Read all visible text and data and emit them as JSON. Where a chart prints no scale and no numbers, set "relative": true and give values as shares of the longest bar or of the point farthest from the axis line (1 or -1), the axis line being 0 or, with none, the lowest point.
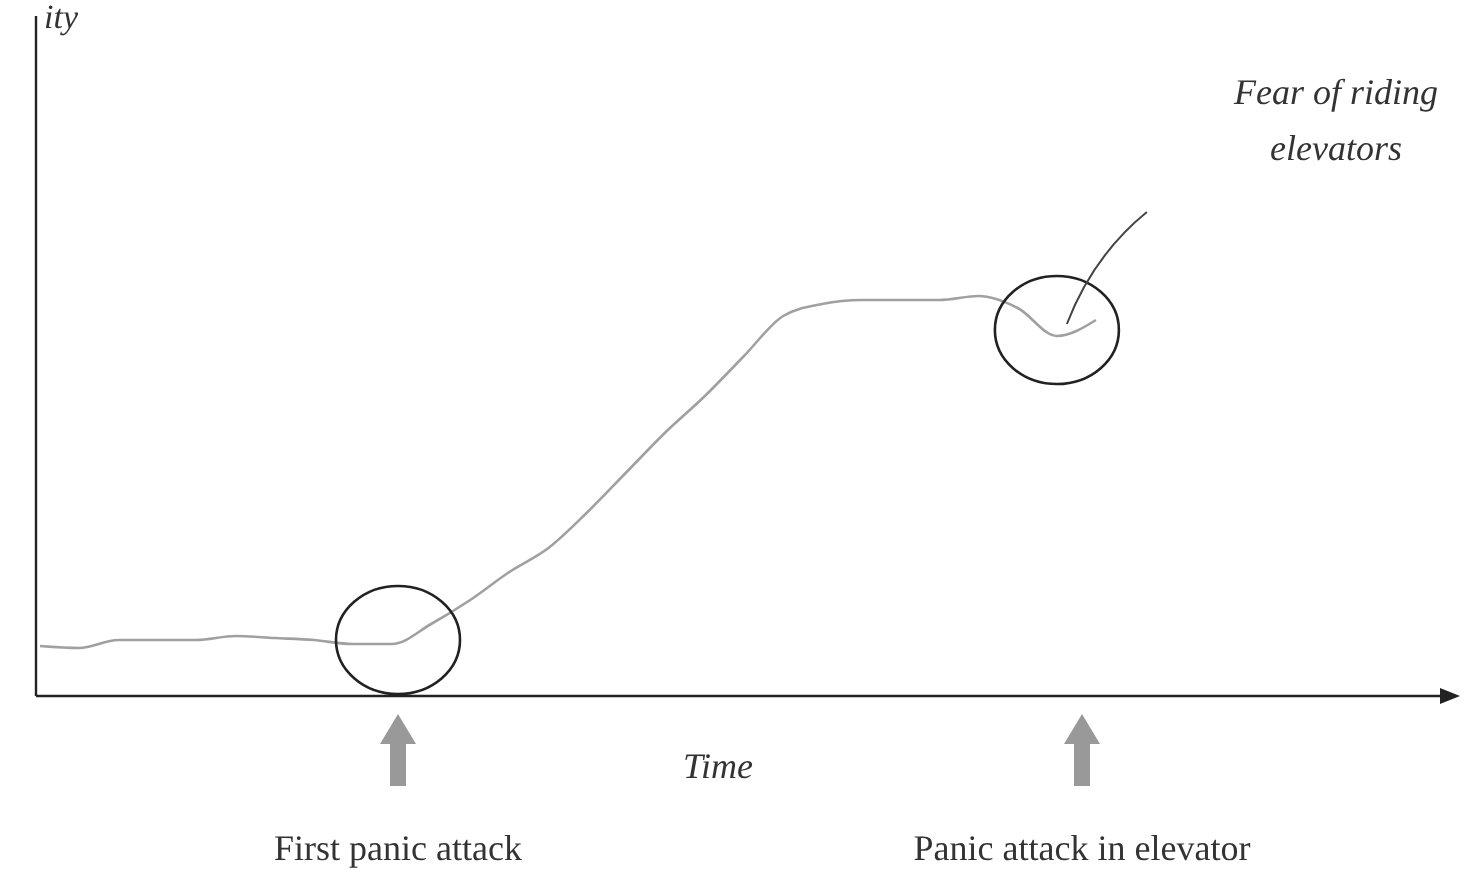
{
  "chart_data": {
    "type": "line",
    "relative": true,
    "xlabel": "Time",
    "categories": [
      null,
      null,
      null,
      null,
      null,
      null,
      null,
      null,
      null,
      null,
      null,
      null,
      null,
      null,
      null,
      null,
      null,
      null,
      null,
      null,
      null,
      null,
      null,
      null,
      null,
      null,
      null,
      null
    ],
    "series": [
      {
        "color": "#a0a0a0",
        "values": [
          0.125,
          0.12,
          0.14,
          0.14,
          0.14,
          0.15,
          0.145,
          0.14,
          0.13,
          0.13,
          0.18,
          0.24,
          0.31,
          0.37,
          0.46,
          0.56,
          0.66,
          0.75,
          0.85,
          0.95,
          0.98,
          0.99,
          0.99,
          0.99,
          1,
          0.97,
          0.9,
          0.94
        ]
      }
    ],
    "annotations": [
      "ity",
      "First panic attack",
      "Panic attack in elevator",
      "Fear of riding elevators"
    ],
    "marker": "none",
    "line_style": "solid"
  }
}
